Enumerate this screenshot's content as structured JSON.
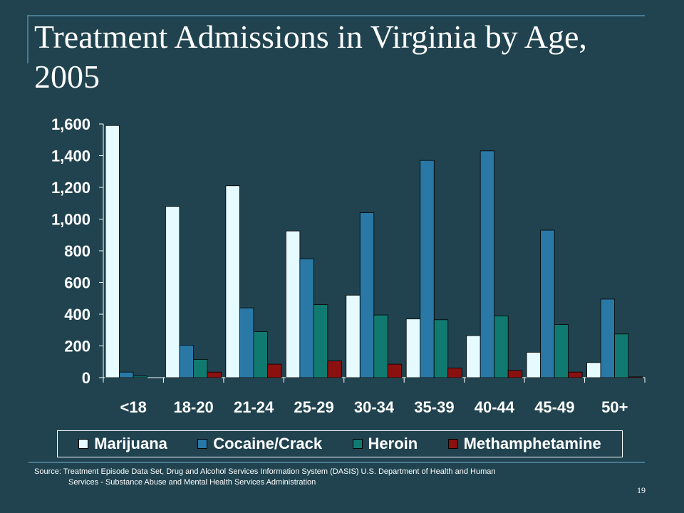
{
  "slide": {
    "title": "Treatment Admissions in Virginia by Age, 2005",
    "source_line1": "Source: Treatment Episode Data Set, Drug and Alcohol Services Information System (DASIS) U.S. Department of Health and Human",
    "source_line2": "Services - Substance Abuse and Mental Health Services Administration",
    "page_number": "19"
  },
  "chart_data": {
    "type": "bar",
    "title": "Treatment Admissions in Virginia by Age, 2005",
    "xlabel": "",
    "ylabel": "",
    "ylim": [
      0,
      1600
    ],
    "yticks": [
      "0",
      "200",
      "400",
      "600",
      "800",
      "1,000",
      "1,200",
      "1,400",
      "1,600"
    ],
    "categories": [
      "<18",
      "18-20",
      "21-24",
      "25-29",
      "30-34",
      "35-39",
      "40-44",
      "45-49",
      "50+"
    ],
    "legend_position": "bottom",
    "grid": false,
    "series": [
      {
        "name": "Marijuana",
        "color": "#e6fbff",
        "values": [
          1590,
          1080,
          1210,
          925,
          520,
          370,
          265,
          160,
          95
        ]
      },
      {
        "name": "Cocaine/Crack",
        "color": "#2a78a6",
        "values": [
          35,
          205,
          440,
          750,
          1040,
          1370,
          1430,
          930,
          495
        ]
      },
      {
        "name": "Heroin",
        "color": "#117a70",
        "values": [
          10,
          115,
          290,
          460,
          395,
          365,
          390,
          335,
          275
        ]
      },
      {
        "name": "Methamphetamine",
        "color": "#8b1010",
        "values": [
          0,
          35,
          85,
          105,
          85,
          60,
          45,
          35,
          5
        ]
      }
    ]
  }
}
